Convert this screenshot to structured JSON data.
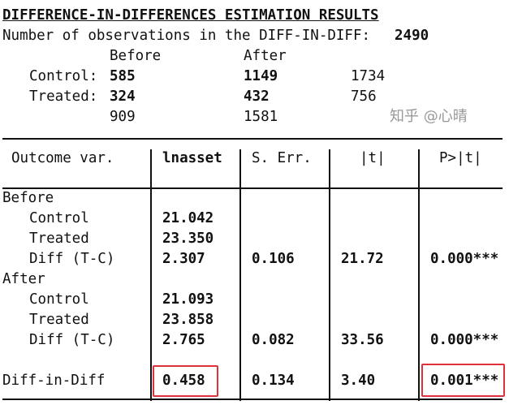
{
  "title": "DIFFERENCE-IN-DIFFERENCES ESTIMATION RESULTS",
  "obs_label": "Number of observations in the DIFF-IN-DIFF:",
  "obs_total": "2490",
  "counts": {
    "col_before": "Before",
    "col_after": "After",
    "control_label": "Control:",
    "treated_label": "Treated:",
    "control_before": "585",
    "control_after": "1149",
    "control_total": "1734",
    "treated_before": "324",
    "treated_after": "432",
    "treated_total": "756",
    "total_before": "909",
    "total_after": "1581"
  },
  "table": {
    "headers": [
      "Outcome var.",
      "lnasset",
      "S. Err.",
      "|t|",
      "P>|t|"
    ],
    "before_label": "Before",
    "after_label": "After",
    "rows": [
      {
        "label": "Control",
        "coef": "21.042",
        "se": "",
        "t": "",
        "p": ""
      },
      {
        "label": "Treated",
        "coef": "23.350",
        "se": "",
        "t": "",
        "p": ""
      },
      {
        "label": "Diff (T-C)",
        "coef": "2.307",
        "se": "0.106",
        "t": "21.72",
        "p": "0.000***"
      },
      {
        "label": "Control",
        "coef": "21.093",
        "se": "",
        "t": "",
        "p": ""
      },
      {
        "label": "Treated",
        "coef": "23.858",
        "se": "",
        "t": "",
        "p": ""
      },
      {
        "label": "Diff (T-C)",
        "coef": "2.765",
        "se": "0.082",
        "t": "33.56",
        "p": "0.000***"
      }
    ],
    "did": {
      "label": "Diff-in-Diff",
      "coef": "0.458",
      "se": "0.134",
      "t": "3.40",
      "p": "0.001***"
    }
  },
  "highlight_color": "#e0303a",
  "watermark": "知乎 @心晴"
}
